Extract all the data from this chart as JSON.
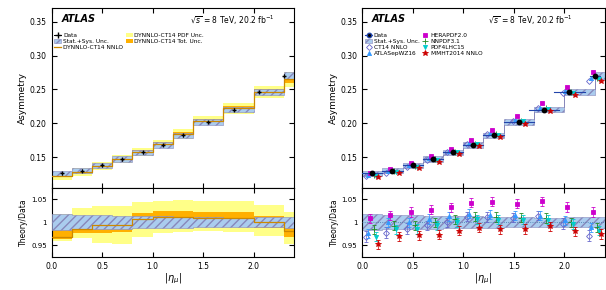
{
  "eta_centers": [
    0.1,
    0.3,
    0.5,
    0.7,
    0.9,
    1.1,
    1.3,
    1.55,
    1.8,
    2.05,
    2.3
  ],
  "eta_edges": [
    0.0,
    0.2,
    0.4,
    0.6,
    0.8,
    1.0,
    1.2,
    1.4,
    1.7,
    2.0,
    2.3,
    2.4
  ],
  "data_asymmetry": [
    0.126,
    0.13,
    0.138,
    0.147,
    0.157,
    0.168,
    0.182,
    0.202,
    0.22,
    0.246,
    0.27
  ],
  "data_stat_unc": [
    0.002,
    0.002,
    0.002,
    0.002,
    0.002,
    0.002,
    0.002,
    0.002,
    0.002,
    0.002,
    0.002
  ],
  "theory_central": [
    0.122,
    0.128,
    0.137,
    0.147,
    0.158,
    0.17,
    0.184,
    0.204,
    0.222,
    0.246,
    0.265
  ],
  "theory_pdf_unc_up": [
    0.006,
    0.006,
    0.006,
    0.006,
    0.006,
    0.006,
    0.007,
    0.007,
    0.008,
    0.009,
    0.011
  ],
  "theory_pdf_unc_dn": [
    0.006,
    0.006,
    0.006,
    0.006,
    0.006,
    0.006,
    0.007,
    0.007,
    0.008,
    0.009,
    0.011
  ],
  "theory_tot_unc_up": [
    0.002,
    0.002,
    0.002,
    0.002,
    0.002,
    0.002,
    0.003,
    0.003,
    0.003,
    0.004,
    0.005
  ],
  "theory_tot_unc_dn": [
    0.002,
    0.002,
    0.002,
    0.002,
    0.002,
    0.002,
    0.003,
    0.003,
    0.003,
    0.004,
    0.005
  ],
  "ratio_theory_central": [
    0.968,
    0.985,
    0.993,
    0.993,
    1.006,
    1.012,
    1.011,
    1.01,
    1.009,
    1.0,
    0.981
  ],
  "ratio_pdf_unc_up": [
    0.05,
    0.046,
    0.043,
    0.041,
    0.038,
    0.035,
    0.038,
    0.035,
    0.036,
    0.037,
    0.041
  ],
  "ratio_pdf_unc_dn": [
    0.01,
    0.02,
    0.038,
    0.041,
    0.038,
    0.035,
    0.033,
    0.03,
    0.03,
    0.03,
    0.028
  ],
  "ratio_tot_unc_up": [
    0.02,
    0.018,
    0.016,
    0.014,
    0.013,
    0.013,
    0.014,
    0.012,
    0.012,
    0.013,
    0.015
  ],
  "ratio_tot_unc_dn": [
    0.005,
    0.008,
    0.016,
    0.014,
    0.013,
    0.013,
    0.012,
    0.011,
    0.011,
    0.012,
    0.013
  ],
  "data_band_half": [
    0.004,
    0.004,
    0.004,
    0.004,
    0.004,
    0.004,
    0.004,
    0.004,
    0.004,
    0.005,
    0.005
  ],
  "ratio_data_band_half": [
    0.018,
    0.016,
    0.015,
    0.014,
    0.013,
    0.013,
    0.012,
    0.011,
    0.01,
    0.011,
    0.012
  ],
  "pdf_sets": {
    "CT14 NNLO": {
      "asymmetry": [
        0.122,
        0.127,
        0.136,
        0.146,
        0.157,
        0.17,
        0.184,
        0.204,
        0.223,
        0.245,
        0.262
      ],
      "ratio": [
        0.968,
        0.977,
        0.986,
        0.993,
        1.0,
        1.012,
        1.011,
        1.01,
        1.014,
        0.996,
        0.97
      ],
      "ratio_err": [
        0.012,
        0.012,
        0.012,
        0.01,
        0.01,
        0.01,
        0.01,
        0.01,
        0.01,
        0.012,
        0.012
      ],
      "color": "#6666CC",
      "marker": "D",
      "markersize": 3,
      "mfc": "none"
    },
    "ATLASepWZ16": {
      "asymmetry": [
        0.123,
        0.13,
        0.138,
        0.148,
        0.159,
        0.171,
        0.185,
        0.205,
        0.223,
        0.247,
        0.267
      ],
      "ratio": [
        0.976,
        1.0,
        1.0,
        1.007,
        1.013,
        1.018,
        1.016,
        1.015,
        1.014,
        1.004,
        0.989
      ],
      "ratio_err": [
        0.01,
        0.01,
        0.01,
        0.01,
        0.01,
        0.01,
        0.01,
        0.01,
        0.01,
        0.01,
        0.01
      ],
      "color": "#3399FF",
      "marker": "^",
      "markersize": 3,
      "mfc": "#3399FF"
    },
    "HERAPDF2.0": {
      "asymmetry": [
        0.127,
        0.132,
        0.141,
        0.151,
        0.162,
        0.175,
        0.19,
        0.21,
        0.23,
        0.254,
        0.276
      ],
      "ratio": [
        1.008,
        1.015,
        1.022,
        1.027,
        1.032,
        1.042,
        1.044,
        1.04,
        1.045,
        1.033,
        1.022
      ],
      "ratio_err": [
        0.01,
        0.01,
        0.01,
        0.01,
        0.01,
        0.01,
        0.01,
        0.01,
        0.01,
        0.01,
        0.01
      ],
      "color": "#CC00CC",
      "marker": "s",
      "markersize": 3,
      "mfc": "#CC00CC"
    },
    "NNPDF3.1": {
      "asymmetry": [
        0.124,
        0.129,
        0.137,
        0.147,
        0.158,
        0.17,
        0.184,
        0.204,
        0.222,
        0.246,
        0.267
      ],
      "ratio": [
        0.984,
        0.992,
        0.993,
        1.0,
        1.006,
        1.012,
        1.011,
        1.01,
        1.009,
        1.0,
        0.989
      ],
      "ratio_err": [
        0.01,
        0.01,
        0.01,
        0.01,
        0.01,
        0.01,
        0.01,
        0.01,
        0.01,
        0.01,
        0.01
      ],
      "color": "#228B22",
      "marker": "+",
      "markersize": 4,
      "mfc": "#228B22"
    },
    "PDF4LHC15": {
      "asymmetry": [
        0.122,
        0.128,
        0.136,
        0.146,
        0.157,
        0.169,
        0.183,
        0.203,
        0.221,
        0.245,
        0.265
      ],
      "ratio": [
        0.968,
        0.984,
        0.985,
        0.993,
        1.0,
        1.006,
        1.005,
        1.005,
        1.005,
        0.996,
        0.981
      ],
      "ratio_err": [
        0.01,
        0.01,
        0.01,
        0.01,
        0.01,
        0.01,
        0.01,
        0.01,
        0.01,
        0.01,
        0.01
      ],
      "color": "#00CCCC",
      "marker": "v",
      "markersize": 3,
      "mfc": "#00CCCC"
    },
    "MMHT2014 NNLO": {
      "asymmetry": [
        0.12,
        0.126,
        0.134,
        0.143,
        0.154,
        0.166,
        0.179,
        0.199,
        0.218,
        0.241,
        0.263
      ],
      "ratio": [
        0.952,
        0.969,
        0.971,
        0.973,
        0.981,
        0.988,
        0.984,
        0.985,
        0.991,
        0.98,
        0.974
      ],
      "ratio_err": [
        0.01,
        0.01,
        0.01,
        0.01,
        0.01,
        0.01,
        0.01,
        0.01,
        0.01,
        0.01,
        0.01
      ],
      "color": "#CC0000",
      "marker": "*",
      "markersize": 4,
      "mfc": "#CC0000"
    }
  },
  "ylim_main": [
    0.105,
    0.37
  ],
  "ylim_ratio": [
    0.925,
    1.075
  ],
  "yticks_ratio": [
    0.95,
    1.0,
    1.05
  ],
  "xlim": [
    0.0,
    2.4
  ],
  "ylabel_main": "Asymmetry",
  "ylabel_ratio": "Theory/Data",
  "xlabel": "|\\eta_{\\mu}|",
  "color_pdf_band": "#FFFF88",
  "color_tot_band": "#FFB000",
  "color_data_band": "#AACCEE",
  "color_theory_line": "#CC8800",
  "bg_color": "#FFFFFF"
}
